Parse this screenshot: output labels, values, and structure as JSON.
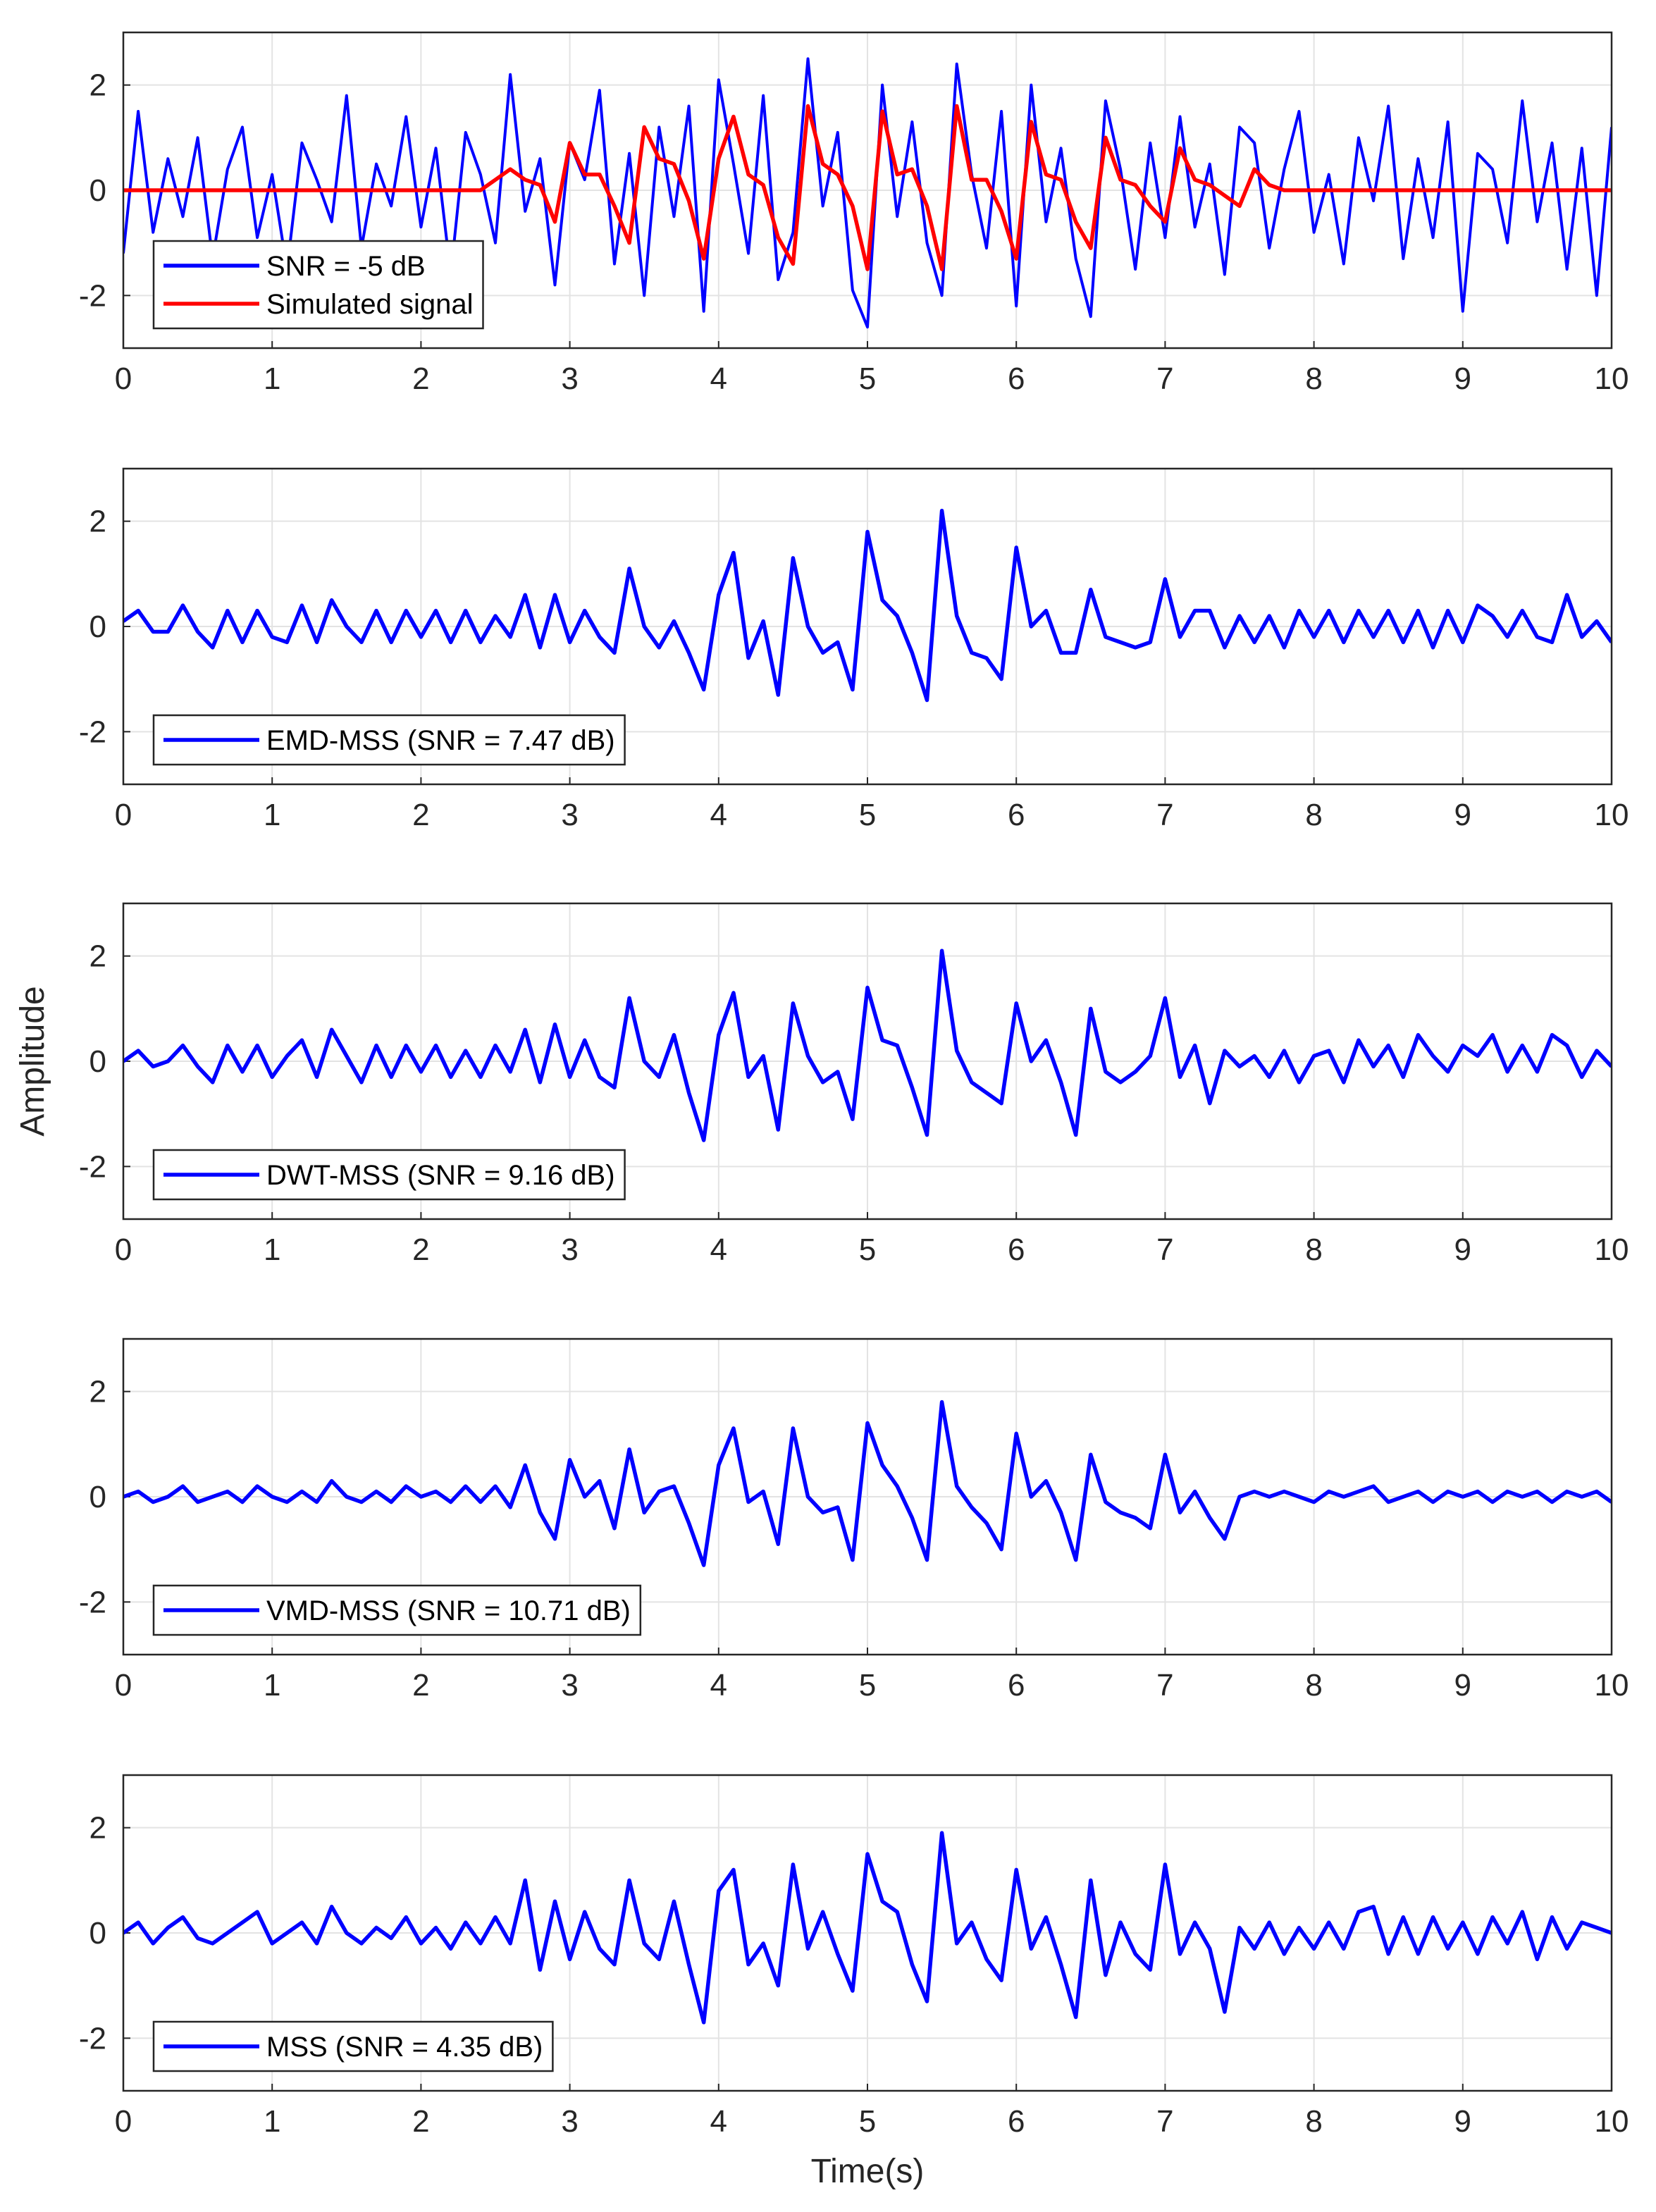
{
  "chart_data": [
    {
      "type": "line",
      "legend": "lower left",
      "grid": true,
      "xlim": [
        0,
        10
      ],
      "xticks": [
        0,
        1,
        2,
        3,
        4,
        5,
        6,
        7,
        8,
        9,
        10
      ],
      "ylim": [
        -3,
        3
      ],
      "yticks": [
        -2,
        0,
        2
      ],
      "x": [
        0,
        0.1,
        0.2,
        0.3,
        0.4,
        0.5,
        0.6,
        0.7,
        0.8,
        0.9,
        1,
        1.1,
        1.2,
        1.3,
        1.4,
        1.5,
        1.6,
        1.7,
        1.8,
        1.9,
        2,
        2.1,
        2.2,
        2.3,
        2.4,
        2.5,
        2.6,
        2.7,
        2.8,
        2.9,
        3,
        3.1,
        3.2,
        3.3,
        3.4,
        3.5,
        3.6,
        3.7,
        3.8,
        3.9,
        4,
        4.1,
        4.2,
        4.3,
        4.4,
        4.5,
        4.6,
        4.7,
        4.8,
        4.9,
        5,
        5.1,
        5.2,
        5.3,
        5.4,
        5.5,
        5.6,
        5.7,
        5.8,
        5.9,
        6,
        6.1,
        6.2,
        6.3,
        6.4,
        6.5,
        6.6,
        6.7,
        6.8,
        6.9,
        7,
        7.1,
        7.2,
        7.3,
        7.4,
        7.5,
        7.6,
        7.7,
        7.8,
        7.9,
        8,
        8.1,
        8.2,
        8.3,
        8.4,
        8.5,
        8.6,
        8.7,
        8.8,
        8.9,
        9,
        9.1,
        9.2,
        9.3,
        9.4,
        9.5,
        9.6,
        9.7,
        9.8,
        9.9,
        10
      ],
      "series": [
        {
          "name": "SNR = -5 dB",
          "color": "#0000ff",
          "values": [
            -1.2,
            1.5,
            -0.8,
            0.6,
            -0.5,
            1.0,
            -1.3,
            0.4,
            1.2,
            -0.9,
            0.3,
            -1.5,
            0.9,
            0.2,
            -0.6,
            1.8,
            -1.1,
            0.5,
            -0.3,
            1.4,
            -0.7,
            0.8,
            -1.6,
            1.1,
            0.3,
            -1.0,
            2.2,
            -0.4,
            0.6,
            -1.8,
            0.9,
            0.2,
            1.9,
            -1.4,
            0.7,
            -2.0,
            1.2,
            -0.5,
            1.6,
            -2.3,
            2.1,
            0.5,
            -1.2,
            1.8,
            -1.7,
            -0.8,
            2.5,
            -0.3,
            1.1,
            -1.9,
            -2.6,
            2.0,
            -0.5,
            1.3,
            -1.0,
            -2.0,
            2.4,
            0.3,
            -1.1,
            1.5,
            -2.2,
            2.0,
            -0.6,
            0.8,
            -1.3,
            -2.4,
            1.7,
            0.4,
            -1.5,
            0.9,
            -0.9,
            1.4,
            -0.7,
            0.5,
            -1.6,
            1.2,
            0.9,
            -1.1,
            0.4,
            1.5,
            -0.8,
            0.3,
            -1.4,
            1.0,
            -0.2,
            1.6,
            -1.3,
            0.6,
            -0.9,
            1.3,
            -2.3,
            0.7,
            0.4,
            -1.0,
            1.7,
            -0.6,
            0.9,
            -1.5,
            0.8,
            -2.0,
            1.2
          ]
        },
        {
          "name": "Simulated signal",
          "color": "#ff0000",
          "values": [
            0,
            0,
            0,
            0,
            0,
            0,
            0,
            0,
            0,
            0,
            0,
            0,
            0,
            0,
            0,
            0,
            0,
            0,
            0,
            0,
            0,
            0,
            0,
            0,
            0,
            0.2,
            0.4,
            0.2,
            0.1,
            -0.6,
            0.9,
            0.3,
            0.3,
            -0.3,
            -1.0,
            1.2,
            0.6,
            0.5,
            -0.2,
            -1.3,
            0.6,
            1.4,
            0.3,
            0.1,
            -0.9,
            -1.4,
            1.6,
            0.5,
            0.3,
            -0.3,
            -1.5,
            1.5,
            0.3,
            0.4,
            -0.3,
            -1.5,
            1.6,
            0.2,
            0.2,
            -0.4,
            -1.3,
            1.3,
            0.3,
            0.2,
            -0.6,
            -1.1,
            1.0,
            0.2,
            0.1,
            -0.3,
            -0.6,
            0.8,
            0.2,
            0.1,
            -0.1,
            -0.3,
            0.4,
            0.1,
            0,
            0,
            0,
            0,
            0,
            0,
            0,
            0,
            0,
            0,
            0,
            0,
            0,
            0,
            0,
            0,
            0,
            0,
            0,
            0,
            0,
            0,
            0
          ]
        }
      ]
    },
    {
      "type": "line",
      "legend": "lower left",
      "grid": true,
      "xlim": [
        0,
        10
      ],
      "xticks": [
        0,
        1,
        2,
        3,
        4,
        5,
        6,
        7,
        8,
        9,
        10
      ],
      "ylim": [
        -3,
        3
      ],
      "yticks": [
        -2,
        0,
        2
      ],
      "x": [
        0,
        0.1,
        0.2,
        0.3,
        0.4,
        0.5,
        0.6,
        0.7,
        0.8,
        0.9,
        1,
        1.1,
        1.2,
        1.3,
        1.4,
        1.5,
        1.6,
        1.7,
        1.8,
        1.9,
        2,
        2.1,
        2.2,
        2.3,
        2.4,
        2.5,
        2.6,
        2.7,
        2.8,
        2.9,
        3,
        3.1,
        3.2,
        3.3,
        3.4,
        3.5,
        3.6,
        3.7,
        3.8,
        3.9,
        4,
        4.1,
        4.2,
        4.3,
        4.4,
        4.5,
        4.6,
        4.7,
        4.8,
        4.9,
        5,
        5.1,
        5.2,
        5.3,
        5.4,
        5.5,
        5.6,
        5.7,
        5.8,
        5.9,
        6,
        6.1,
        6.2,
        6.3,
        6.4,
        6.5,
        6.6,
        6.7,
        6.8,
        6.9,
        7,
        7.1,
        7.2,
        7.3,
        7.4,
        7.5,
        7.6,
        7.7,
        7.8,
        7.9,
        8,
        8.1,
        8.2,
        8.3,
        8.4,
        8.5,
        8.6,
        8.7,
        8.8,
        8.9,
        9,
        9.1,
        9.2,
        9.3,
        9.4,
        9.5,
        9.6,
        9.7,
        9.8,
        9.9,
        10
      ],
      "series": [
        {
          "name": "EMD-MSS (SNR = 7.47 dB)",
          "color": "#0000ff",
          "values": [
            0.1,
            0.3,
            -0.1,
            -0.1,
            0.4,
            -0.1,
            -0.4,
            0.3,
            -0.3,
            0.3,
            -0.2,
            -0.3,
            0.4,
            -0.3,
            0.5,
            0.0,
            -0.3,
            0.3,
            -0.3,
            0.3,
            -0.2,
            0.3,
            -0.3,
            0.3,
            -0.3,
            0.2,
            -0.2,
            0.6,
            -0.4,
            0.6,
            -0.3,
            0.3,
            -0.2,
            -0.5,
            1.1,
            0.0,
            -0.4,
            0.1,
            -0.5,
            -1.2,
            0.6,
            1.4,
            -0.6,
            0.1,
            -1.3,
            1.3,
            0.0,
            -0.5,
            -0.3,
            -1.2,
            1.8,
            0.5,
            0.2,
            -0.5,
            -1.4,
            2.2,
            0.2,
            -0.5,
            -0.6,
            -1.0,
            1.5,
            0.0,
            0.3,
            -0.5,
            -0.5,
            0.7,
            -0.2,
            -0.3,
            -0.4,
            -0.3,
            0.9,
            -0.2,
            0.3,
            0.3,
            -0.4,
            0.2,
            -0.3,
            0.2,
            -0.4,
            0.3,
            -0.2,
            0.3,
            -0.3,
            0.3,
            -0.2,
            0.3,
            -0.3,
            0.3,
            -0.4,
            0.3,
            -0.3,
            0.4,
            0.2,
            -0.2,
            0.3,
            -0.2,
            -0.3,
            0.6,
            -0.2,
            0.1,
            -0.3
          ]
        }
      ]
    },
    {
      "type": "line",
      "legend": "lower left",
      "grid": true,
      "ylabel": "Amplitude",
      "xlim": [
        0,
        10
      ],
      "xticks": [
        0,
        1,
        2,
        3,
        4,
        5,
        6,
        7,
        8,
        9,
        10
      ],
      "ylim": [
        -3,
        3
      ],
      "yticks": [
        -2,
        0,
        2
      ],
      "x": [
        0,
        0.1,
        0.2,
        0.3,
        0.4,
        0.5,
        0.6,
        0.7,
        0.8,
        0.9,
        1,
        1.1,
        1.2,
        1.3,
        1.4,
        1.5,
        1.6,
        1.7,
        1.8,
        1.9,
        2,
        2.1,
        2.2,
        2.3,
        2.4,
        2.5,
        2.6,
        2.7,
        2.8,
        2.9,
        3,
        3.1,
        3.2,
        3.3,
        3.4,
        3.5,
        3.6,
        3.7,
        3.8,
        3.9,
        4,
        4.1,
        4.2,
        4.3,
        4.4,
        4.5,
        4.6,
        4.7,
        4.8,
        4.9,
        5,
        5.1,
        5.2,
        5.3,
        5.4,
        5.5,
        5.6,
        5.7,
        5.8,
        5.9,
        6,
        6.1,
        6.2,
        6.3,
        6.4,
        6.5,
        6.6,
        6.7,
        6.8,
        6.9,
        7,
        7.1,
        7.2,
        7.3,
        7.4,
        7.5,
        7.6,
        7.7,
        7.8,
        7.9,
        8,
        8.1,
        8.2,
        8.3,
        8.4,
        8.5,
        8.6,
        8.7,
        8.8,
        8.9,
        9,
        9.1,
        9.2,
        9.3,
        9.4,
        9.5,
        9.6,
        9.7,
        9.8,
        9.9,
        10
      ],
      "series": [
        {
          "name": "DWT-MSS (SNR = 9.16 dB)",
          "color": "#0000ff",
          "values": [
            0.0,
            0.2,
            -0.1,
            0.0,
            0.3,
            -0.1,
            -0.4,
            0.3,
            -0.2,
            0.3,
            -0.3,
            0.1,
            0.4,
            -0.3,
            0.6,
            0.1,
            -0.4,
            0.3,
            -0.3,
            0.3,
            -0.2,
            0.3,
            -0.3,
            0.2,
            -0.3,
            0.3,
            -0.2,
            0.6,
            -0.4,
            0.7,
            -0.3,
            0.4,
            -0.3,
            -0.5,
            1.2,
            0.0,
            -0.3,
            0.5,
            -0.6,
            -1.5,
            0.5,
            1.3,
            -0.3,
            0.1,
            -1.3,
            1.1,
            0.1,
            -0.4,
            -0.2,
            -1.1,
            1.4,
            0.4,
            0.3,
            -0.5,
            -1.4,
            2.1,
            0.2,
            -0.4,
            -0.6,
            -0.8,
            1.1,
            0.0,
            0.4,
            -0.4,
            -1.4,
            1.0,
            -0.2,
            -0.4,
            -0.2,
            0.1,
            1.2,
            -0.3,
            0.3,
            -0.8,
            0.2,
            -0.1,
            0.1,
            -0.3,
            0.2,
            -0.4,
            0.1,
            0.2,
            -0.4,
            0.4,
            -0.1,
            0.3,
            -0.3,
            0.5,
            0.1,
            -0.2,
            0.3,
            0.1,
            0.5,
            -0.2,
            0.3,
            -0.2,
            0.5,
            0.3,
            -0.3,
            0.2,
            -0.1
          ]
        }
      ]
    },
    {
      "type": "line",
      "legend": "lower left",
      "grid": true,
      "xlim": [
        0,
        10
      ],
      "xticks": [
        0,
        1,
        2,
        3,
        4,
        5,
        6,
        7,
        8,
        9,
        10
      ],
      "ylim": [
        -3,
        3
      ],
      "yticks": [
        -2,
        0,
        2
      ],
      "x": [
        0,
        0.1,
        0.2,
        0.3,
        0.4,
        0.5,
        0.6,
        0.7,
        0.8,
        0.9,
        1,
        1.1,
        1.2,
        1.3,
        1.4,
        1.5,
        1.6,
        1.7,
        1.8,
        1.9,
        2,
        2.1,
        2.2,
        2.3,
        2.4,
        2.5,
        2.6,
        2.7,
        2.8,
        2.9,
        3,
        3.1,
        3.2,
        3.3,
        3.4,
        3.5,
        3.6,
        3.7,
        3.8,
        3.9,
        4,
        4.1,
        4.2,
        4.3,
        4.4,
        4.5,
        4.6,
        4.7,
        4.8,
        4.9,
        5,
        5.1,
        5.2,
        5.3,
        5.4,
        5.5,
        5.6,
        5.7,
        5.8,
        5.9,
        6,
        6.1,
        6.2,
        6.3,
        6.4,
        6.5,
        6.6,
        6.7,
        6.8,
        6.9,
        7,
        7.1,
        7.2,
        7.3,
        7.4,
        7.5,
        7.6,
        7.7,
        7.8,
        7.9,
        8,
        8.1,
        8.2,
        8.3,
        8.4,
        8.5,
        8.6,
        8.7,
        8.8,
        8.9,
        9,
        9.1,
        9.2,
        9.3,
        9.4,
        9.5,
        9.6,
        9.7,
        9.8,
        9.9,
        10
      ],
      "series": [
        {
          "name": "VMD-MSS (SNR = 10.71 dB)",
          "color": "#0000ff",
          "values": [
            0.0,
            0.1,
            -0.1,
            0.0,
            0.2,
            -0.1,
            0.0,
            0.1,
            -0.1,
            0.2,
            0.0,
            -0.1,
            0.1,
            -0.1,
            0.3,
            0.0,
            -0.1,
            0.1,
            -0.1,
            0.2,
            0.0,
            0.1,
            -0.1,
            0.2,
            -0.1,
            0.2,
            -0.2,
            0.6,
            -0.3,
            -0.8,
            0.7,
            0.0,
            0.3,
            -0.6,
            0.9,
            -0.3,
            0.1,
            0.2,
            -0.5,
            -1.3,
            0.6,
            1.3,
            -0.1,
            0.1,
            -0.9,
            1.3,
            0.0,
            -0.3,
            -0.2,
            -1.2,
            1.4,
            0.6,
            0.2,
            -0.4,
            -1.2,
            1.8,
            0.2,
            -0.2,
            -0.5,
            -1.0,
            1.2,
            0.0,
            0.3,
            -0.3,
            -1.2,
            0.8,
            -0.1,
            -0.3,
            -0.4,
            -0.6,
            0.8,
            -0.3,
            0.1,
            -0.4,
            -0.8,
            0.0,
            0.1,
            0.0,
            0.1,
            0.0,
            -0.1,
            0.1,
            0.0,
            0.1,
            0.2,
            -0.1,
            0.0,
            0.1,
            -0.1,
            0.1,
            0.0,
            0.1,
            -0.1,
            0.1,
            0.0,
            0.1,
            -0.1,
            0.1,
            0.0,
            0.1,
            -0.1
          ]
        }
      ]
    },
    {
      "type": "line",
      "legend": "lower left",
      "grid": true,
      "xlabel": "Time(s)",
      "xlim": [
        0,
        10
      ],
      "xticks": [
        0,
        1,
        2,
        3,
        4,
        5,
        6,
        7,
        8,
        9,
        10
      ],
      "ylim": [
        -3,
        3
      ],
      "yticks": [
        -2,
        0,
        2
      ],
      "x": [
        0,
        0.1,
        0.2,
        0.3,
        0.4,
        0.5,
        0.6,
        0.7,
        0.8,
        0.9,
        1,
        1.1,
        1.2,
        1.3,
        1.4,
        1.5,
        1.6,
        1.7,
        1.8,
        1.9,
        2,
        2.1,
        2.2,
        2.3,
        2.4,
        2.5,
        2.6,
        2.7,
        2.8,
        2.9,
        3,
        3.1,
        3.2,
        3.3,
        3.4,
        3.5,
        3.6,
        3.7,
        3.8,
        3.9,
        4,
        4.1,
        4.2,
        4.3,
        4.4,
        4.5,
        4.6,
        4.7,
        4.8,
        4.9,
        5,
        5.1,
        5.2,
        5.3,
        5.4,
        5.5,
        5.6,
        5.7,
        5.8,
        5.9,
        6,
        6.1,
        6.2,
        6.3,
        6.4,
        6.5,
        6.6,
        6.7,
        6.8,
        6.9,
        7,
        7.1,
        7.2,
        7.3,
        7.4,
        7.5,
        7.6,
        7.7,
        7.8,
        7.9,
        8,
        8.1,
        8.2,
        8.3,
        8.4,
        8.5,
        8.6,
        8.7,
        8.8,
        8.9,
        9,
        9.1,
        9.2,
        9.3,
        9.4,
        9.5,
        9.6,
        9.7,
        9.8,
        9.9,
        10
      ],
      "series": [
        {
          "name": "MSS (SNR = 4.35 dB)",
          "color": "#0000ff",
          "values": [
            0.0,
            0.2,
            -0.2,
            0.1,
            0.3,
            -0.1,
            -0.2,
            0.0,
            0.2,
            0.4,
            -0.2,
            0.0,
            0.2,
            -0.2,
            0.5,
            0.0,
            -0.2,
            0.1,
            -0.1,
            0.3,
            -0.2,
            0.1,
            -0.3,
            0.2,
            -0.2,
            0.3,
            -0.2,
            1.0,
            -0.7,
            0.6,
            -0.5,
            0.4,
            -0.3,
            -0.6,
            1.0,
            -0.2,
            -0.5,
            0.6,
            -0.6,
            -1.7,
            0.8,
            1.2,
            -0.6,
            -0.2,
            -1.0,
            1.3,
            -0.3,
            0.4,
            -0.4,
            -1.1,
            1.5,
            0.6,
            0.4,
            -0.6,
            -1.3,
            1.9,
            -0.2,
            0.2,
            -0.5,
            -0.9,
            1.2,
            -0.3,
            0.3,
            -0.6,
            -1.6,
            1.0,
            -0.8,
            0.2,
            -0.4,
            -0.7,
            1.3,
            -0.4,
            0.2,
            -0.3,
            -1.5,
            0.1,
            -0.3,
            0.2,
            -0.4,
            0.1,
            -0.3,
            0.2,
            -0.3,
            0.4,
            0.5,
            -0.4,
            0.3,
            -0.4,
            0.3,
            -0.3,
            0.2,
            -0.4,
            0.3,
            -0.2,
            0.4,
            -0.5,
            0.3,
            -0.3,
            0.2,
            0.1,
            0.0
          ]
        }
      ]
    }
  ]
}
